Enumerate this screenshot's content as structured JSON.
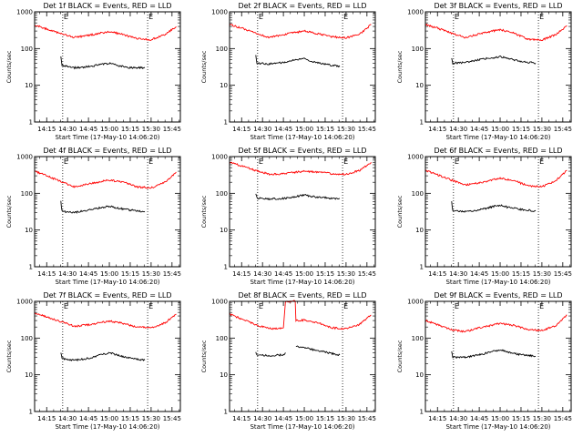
{
  "figure": {
    "panel_count": 9
  },
  "chart_data": [
    {
      "type": "line",
      "title": "Det 1f BLACK = Events, RED = LLD",
      "xlabel": "Start Time (17-May-10 14:06:20)",
      "ylabel": "Counts/sec",
      "y_scale": "log",
      "ylim": [
        1,
        1000
      ],
      "yticks": [
        1,
        10,
        100,
        1000
      ],
      "ytick_labels": [
        "1",
        "10",
        "100",
        "1000"
      ],
      "xlim": [
        "14:06:20",
        "15:51:00"
      ],
      "xtick_labels": [
        "14:15",
        "14:30",
        "14:45",
        "15:00",
        "15:15",
        "15:30",
        "15:45"
      ],
      "markers": [
        {
          "label": "E",
          "x": "14:26:30"
        },
        {
          "label": "E",
          "x": "15:27:30"
        }
      ],
      "series": [
        {
          "color": "#ff0000",
          "x": [
            "14:06:20",
            "14:15",
            "14:25",
            "14:35",
            "14:45",
            "15:00",
            "15:10",
            "15:20",
            "15:30",
            "15:40",
            "15:48"
          ],
          "values": [
            440,
            340,
            250,
            200,
            230,
            290,
            240,
            185,
            175,
            240,
            400
          ]
        },
        {
          "color": "#000000",
          "x": [
            "14:25:10",
            "14:26:00",
            "14:35",
            "14:45",
            "15:00",
            "15:05",
            "15:15",
            "15:25:30"
          ],
          "values": [
            60,
            35,
            30,
            32,
            40,
            35,
            30,
            30
          ]
        }
      ]
    },
    {
      "type": "line",
      "title": "Det 2f BLACK = Events, RED = LLD",
      "xlabel": "Start Time (17-May-10 14:06:20)",
      "ylabel": "Counts/sec",
      "y_scale": "log",
      "ylim": [
        1,
        1000
      ],
      "yticks": [
        1,
        10,
        100,
        1000
      ],
      "ytick_labels": [
        "1",
        "10",
        "100",
        "1000"
      ],
      "xlim": [
        "14:06:20",
        "15:51:00"
      ],
      "xtick_labels": [
        "14:15",
        "14:30",
        "14:45",
        "15:00",
        "15:15",
        "15:30",
        "15:45"
      ],
      "markers": [
        {
          "label": "E",
          "x": "14:26:30"
        },
        {
          "label": "E",
          "x": "15:27:30"
        }
      ],
      "series": [
        {
          "color": "#ff0000",
          "x": [
            "14:06:20",
            "14:15",
            "14:25",
            "14:35",
            "14:45",
            "15:00",
            "15:10",
            "15:20",
            "15:30",
            "15:40",
            "15:48"
          ],
          "values": [
            450,
            360,
            260,
            200,
            240,
            300,
            250,
            210,
            195,
            250,
            450
          ]
        },
        {
          "color": "#000000",
          "x": [
            "14:25:10",
            "14:26:00",
            "14:35",
            "14:45",
            "15:00",
            "15:05",
            "15:15",
            "15:25:30"
          ],
          "values": [
            70,
            40,
            38,
            42,
            55,
            45,
            38,
            32
          ]
        }
      ]
    },
    {
      "type": "line",
      "title": "Det 3f BLACK = Events, RED = LLD",
      "xlabel": "Start Time (17-May-10 14:06:20)",
      "ylabel": "Counts/sec",
      "y_scale": "log",
      "ylim": [
        1,
        1000
      ],
      "yticks": [
        1,
        10,
        100,
        1000
      ],
      "ytick_labels": [
        "1",
        "10",
        "100",
        "1000"
      ],
      "xlim": [
        "14:06:20",
        "15:51:00"
      ],
      "xtick_labels": [
        "14:15",
        "14:30",
        "14:45",
        "15:00",
        "15:15",
        "15:30",
        "15:45"
      ],
      "markers": [
        {
          "label": "E",
          "x": "14:26:30"
        },
        {
          "label": "E",
          "x": "15:27:30"
        }
      ],
      "series": [
        {
          "color": "#ff0000",
          "x": [
            "14:06:20",
            "14:15",
            "14:25",
            "14:35",
            "14:45",
            "15:00",
            "15:10",
            "15:20",
            "15:30",
            "15:40",
            "15:48"
          ],
          "values": [
            460,
            360,
            260,
            200,
            250,
            330,
            260,
            180,
            170,
            240,
            420
          ]
        },
        {
          "color": "#000000",
          "x": [
            "14:25:10",
            "14:26:00",
            "14:35",
            "14:45",
            "15:00",
            "15:05",
            "15:15",
            "15:25:30"
          ],
          "values": [
            55,
            40,
            42,
            50,
            60,
            55,
            45,
            40
          ]
        }
      ]
    },
    {
      "type": "line",
      "title": "Det 4f BLACK = Events, RED = LLD",
      "xlabel": "Start Time (17-May-10 14:06:20)",
      "ylabel": "Counts/sec",
      "y_scale": "log",
      "ylim": [
        1,
        1000
      ],
      "yticks": [
        1,
        10,
        100,
        1000
      ],
      "ytick_labels": [
        "1",
        "10",
        "100",
        "1000"
      ],
      "xlim": [
        "14:06:20",
        "15:51:00"
      ],
      "xtick_labels": [
        "14:15",
        "14:30",
        "14:45",
        "15:00",
        "15:15",
        "15:30",
        "15:45"
      ],
      "markers": [
        {
          "label": "E",
          "x": "14:26:30"
        },
        {
          "label": "E",
          "x": "15:27:30"
        }
      ],
      "series": [
        {
          "color": "#ff0000",
          "x": [
            "14:06:20",
            "14:15",
            "14:25",
            "14:35",
            "14:45",
            "15:00",
            "15:10",
            "15:20",
            "15:30",
            "15:40",
            "15:48"
          ],
          "values": [
            400,
            300,
            210,
            150,
            180,
            230,
            200,
            150,
            140,
            200,
            380
          ]
        },
        {
          "color": "#000000",
          "x": [
            "14:25:10",
            "14:26:00",
            "14:35",
            "14:45",
            "15:00",
            "15:05",
            "15:15",
            "15:25:30"
          ],
          "values": [
            60,
            32,
            30,
            35,
            45,
            40,
            35,
            32
          ]
        }
      ]
    },
    {
      "type": "line",
      "title": "Det 5f BLACK = Events, RED = LLD",
      "xlabel": "Start Time (17-May-10 14:06:20)",
      "ylabel": "Counts/sec",
      "y_scale": "log",
      "ylim": [
        1,
        1000
      ],
      "yticks": [
        1,
        10,
        100,
        1000
      ],
      "ytick_labels": [
        "1",
        "10",
        "100",
        "1000"
      ],
      "xlim": [
        "14:06:20",
        "15:51:00"
      ],
      "xtick_labels": [
        "14:15",
        "14:30",
        "14:45",
        "15:00",
        "15:15",
        "15:30",
        "15:45"
      ],
      "markers": [
        {
          "label": "E",
          "x": "14:26:30"
        },
        {
          "label": "E",
          "x": "15:27:30"
        }
      ],
      "series": [
        {
          "color": "#ff0000",
          "x": [
            "14:06:20",
            "14:15",
            "14:25",
            "14:35",
            "14:45",
            "15:00",
            "15:10",
            "15:20",
            "15:30",
            "15:40",
            "15:48"
          ],
          "values": [
            700,
            560,
            420,
            330,
            340,
            400,
            380,
            340,
            330,
            420,
            700
          ]
        },
        {
          "color": "#000000",
          "x": [
            "14:25:10",
            "14:26:00",
            "14:35",
            "14:45",
            "15:00",
            "15:05",
            "15:15",
            "15:25:30"
          ],
          "values": [
            100,
            75,
            70,
            72,
            90,
            82,
            75,
            72
          ]
        }
      ]
    },
    {
      "type": "line",
      "title": "Det 6f BLACK = Events, RED = LLD",
      "xlabel": "Start Time (17-May-10 14:06:20)",
      "ylabel": "Counts/sec",
      "y_scale": "log",
      "ylim": [
        1,
        1000
      ],
      "yticks": [
        1,
        10,
        100,
        1000
      ],
      "ytick_labels": [
        "1",
        "10",
        "100",
        "1000"
      ],
      "xlim": [
        "14:06:20",
        "15:51:00"
      ],
      "xtick_labels": [
        "14:15",
        "14:30",
        "14:45",
        "15:00",
        "15:15",
        "15:30",
        "15:45"
      ],
      "markers": [
        {
          "label": "E",
          "x": "14:26:30"
        },
        {
          "label": "E",
          "x": "15:27:30"
        }
      ],
      "series": [
        {
          "color": "#ff0000",
          "x": [
            "14:06:20",
            "14:15",
            "14:25",
            "14:35",
            "14:45",
            "15:00",
            "15:10",
            "15:20",
            "15:30",
            "15:40",
            "15:48"
          ],
          "values": [
            420,
            320,
            230,
            170,
            190,
            260,
            220,
            160,
            150,
            220,
            420
          ]
        },
        {
          "color": "#000000",
          "x": [
            "14:25:10",
            "14:26:00",
            "14:35",
            "14:45",
            "15:00",
            "15:05",
            "15:15",
            "15:25:30"
          ],
          "values": [
            60,
            33,
            32,
            35,
            48,
            42,
            36,
            33
          ]
        }
      ]
    },
    {
      "type": "line",
      "title": "Det 7f BLACK = Events, RED = LLD",
      "xlabel": "Start Time (17-May-10 14:06:20)",
      "ylabel": "Counts/sec",
      "y_scale": "log",
      "ylim": [
        1,
        1000
      ],
      "yticks": [
        1,
        10,
        100,
        1000
      ],
      "ytick_labels": [
        "1",
        "10",
        "100",
        "1000"
      ],
      "xlim": [
        "14:06:20",
        "15:51:00"
      ],
      "xtick_labels": [
        "14:15",
        "14:30",
        "14:45",
        "15:00",
        "15:15",
        "15:30",
        "15:45"
      ],
      "markers": [
        {
          "label": "E",
          "x": "14:26:30"
        },
        {
          "label": "E",
          "x": "15:27:30"
        }
      ],
      "series": [
        {
          "color": "#ff0000",
          "x": [
            "14:06:20",
            "14:15",
            "14:25",
            "14:35",
            "14:45",
            "15:00",
            "15:10",
            "15:20",
            "15:30",
            "15:40",
            "15:48"
          ],
          "values": [
            480,
            380,
            280,
            210,
            230,
            290,
            250,
            200,
            190,
            260,
            450
          ]
        },
        {
          "color": "#000000",
          "x": [
            "14:25:10",
            "14:26:00",
            "14:35",
            "14:45",
            "15:00",
            "15:05",
            "15:15",
            "15:25:30"
          ],
          "values": [
            42,
            28,
            25,
            28,
            40,
            35,
            28,
            25
          ]
        }
      ]
    },
    {
      "type": "line",
      "title": "Det 8f BLACK = Events, RED = LLD",
      "xlabel": "Start Time (17-May-10 14:06:20)",
      "ylabel": "Counts/sec",
      "y_scale": "log",
      "ylim": [
        1,
        1000
      ],
      "yticks": [
        1,
        10,
        100,
        1000
      ],
      "ytick_labels": [
        "1",
        "10",
        "100",
        "1000"
      ],
      "xlim": [
        "14:06:20",
        "15:51:00"
      ],
      "xtick_labels": [
        "14:15",
        "14:30",
        "14:45",
        "15:00",
        "15:15",
        "15:30",
        "15:45"
      ],
      "markers": [
        {
          "label": "E",
          "x": "14:26:30"
        },
        {
          "label": "E",
          "x": "15:27:30"
        }
      ],
      "series": [
        {
          "color": "#ff0000",
          "x": [
            "14:06:20",
            "14:15",
            "14:25",
            "14:35",
            "14:45",
            "14:46:30",
            "14:47",
            "14:53:30",
            "14:54",
            "15:00",
            "15:10",
            "15:20",
            "15:30",
            "15:40",
            "15:48"
          ],
          "values": [
            450,
            330,
            230,
            180,
            190,
            1000,
            1000,
            1000,
            300,
            310,
            260,
            190,
            180,
            240,
            420
          ]
        },
        {
          "color": "#000000",
          "x": [
            "14:25:10",
            "14:26:00",
            "14:35",
            "14:45",
            "14:46:30"
          ],
          "values": [
            42,
            35,
            33,
            35,
            40
          ]
        },
        {
          "color": "#000000",
          "x": [
            "14:54",
            "15:00",
            "15:10",
            "15:20",
            "15:25:30"
          ],
          "values": [
            60,
            55,
            45,
            38,
            35
          ]
        }
      ]
    },
    {
      "type": "line",
      "title": "Det 9f BLACK = Events, RED = LLD",
      "xlabel": "Start Time (17-May-10 14:06:20)",
      "ylabel": "Counts/sec",
      "y_scale": "log",
      "ylim": [
        1,
        1000
      ],
      "yticks": [
        1,
        10,
        100,
        1000
      ],
      "ytick_labels": [
        "1",
        "10",
        "100",
        "1000"
      ],
      "xlim": [
        "14:06:20",
        "15:51:00"
      ],
      "xtick_labels": [
        "14:15",
        "14:30",
        "14:45",
        "15:00",
        "15:15",
        "15:30",
        "15:45"
      ],
      "markers": [
        {
          "label": "E",
          "x": "14:26:30"
        },
        {
          "label": "E",
          "x": "15:27:30"
        }
      ],
      "series": [
        {
          "color": "#ff0000",
          "x": [
            "14:06:20",
            "14:15",
            "14:25",
            "14:35",
            "14:45",
            "15:00",
            "15:10",
            "15:20",
            "15:30",
            "15:40",
            "15:48"
          ],
          "values": [
            300,
            230,
            170,
            150,
            190,
            250,
            220,
            170,
            160,
            220,
            420
          ]
        },
        {
          "color": "#000000",
          "x": [
            "14:25:10",
            "14:26:00",
            "14:35",
            "14:45",
            "15:00",
            "15:05",
            "15:15",
            "15:25:30"
          ],
          "values": [
            42,
            30,
            30,
            35,
            48,
            42,
            35,
            32
          ]
        }
      ]
    }
  ]
}
